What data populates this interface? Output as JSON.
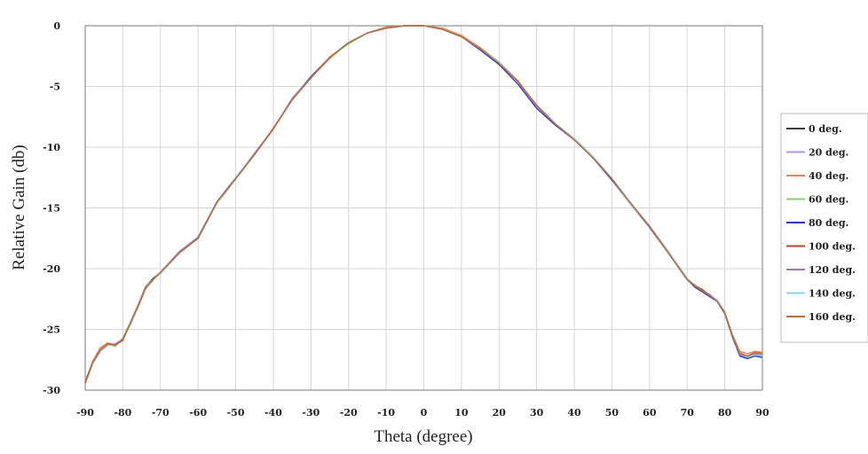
{
  "chart_data": {
    "type": "line",
    "title": "",
    "xlabel": "Theta (degree)",
    "ylabel": "Relative Gain (db)",
    "xlim": [
      -90,
      90
    ],
    "ylim": [
      -30,
      0
    ],
    "x_ticks": [
      "-90",
      "-80",
      "-70",
      "-60",
      "-50",
      "-40",
      "-30",
      "-20",
      "-10",
      "0",
      "10",
      "20",
      "30",
      "40",
      "50",
      "60",
      "70",
      "80",
      "90"
    ],
    "y_ticks": [
      "0",
      "-5",
      "-10",
      "-15",
      "-20",
      "-25",
      "-30"
    ],
    "grid": true,
    "legend_position": "right",
    "x": [
      -90,
      -88,
      -86,
      -84,
      -82,
      -80,
      -78,
      -76,
      -74,
      -72,
      -70,
      -65,
      -60,
      -55,
      -50,
      -45,
      -40,
      -35,
      -30,
      -25,
      -20,
      -15,
      -10,
      -5,
      0,
      5,
      10,
      15,
      20,
      25,
      30,
      35,
      40,
      45,
      50,
      55,
      60,
      65,
      70,
      72,
      74,
      76,
      78,
      80,
      82,
      84,
      86,
      88,
      90
    ],
    "series": [
      {
        "name": "0 deg.",
        "color": "#3c3c3c",
        "values": [
          -29.3,
          -27.8,
          -26.8,
          -26.3,
          -26.3,
          -25.8,
          -24.5,
          -23.0,
          -21.6,
          -20.9,
          -20.3,
          -18.7,
          -17.5,
          -14.5,
          -12.6,
          -10.6,
          -8.5,
          -6.1,
          -4.3,
          -2.6,
          -1.4,
          -0.6,
          -0.2,
          0.0,
          0.0,
          -0.3,
          -0.9,
          -1.9,
          -3.0,
          -4.6,
          -6.6,
          -8.1,
          -9.3,
          -10.8,
          -12.6,
          -14.7,
          -16.5,
          -18.6,
          -20.8,
          -21.4,
          -21.8,
          -22.2,
          -22.6,
          -23.6,
          -25.5,
          -27.0,
          -27.3,
          -27.1,
          -27.2
        ]
      },
      {
        "name": "20 deg.",
        "color": "#b69cd9",
        "values": [
          -29.3,
          -27.7,
          -26.6,
          -26.2,
          -26.2,
          -25.8,
          -24.6,
          -23.1,
          -21.5,
          -20.8,
          -20.3,
          -18.6,
          -17.4,
          -14.6,
          -12.5,
          -10.5,
          -8.5,
          -6.0,
          -4.2,
          -2.6,
          -1.4,
          -0.6,
          -0.2,
          0.0,
          0.0,
          -0.3,
          -0.9,
          -1.9,
          -3.1,
          -4.6,
          -6.5,
          -8.1,
          -9.4,
          -10.9,
          -12.7,
          -14.6,
          -16.6,
          -18.7,
          -20.9,
          -21.3,
          -21.9,
          -22.1,
          -22.7,
          -23.7,
          -25.6,
          -26.9,
          -27.2,
          -26.9,
          -27.3
        ]
      },
      {
        "name": "40 deg.",
        "color": "#f0814c",
        "values": [
          -29.4,
          -27.6,
          -26.5,
          -26.1,
          -26.3,
          -25.9,
          -24.5,
          -23.2,
          -21.7,
          -20.9,
          -20.4,
          -18.7,
          -17.5,
          -14.5,
          -12.6,
          -10.6,
          -8.4,
          -6.1,
          -4.3,
          -2.7,
          -1.4,
          -0.6,
          -0.1,
          0.0,
          0.0,
          -0.2,
          -0.8,
          -1.8,
          -3.0,
          -4.5,
          -6.6,
          -8.2,
          -9.3,
          -10.8,
          -12.6,
          -14.7,
          -16.5,
          -18.6,
          -20.8,
          -21.5,
          -21.7,
          -22.3,
          -22.6,
          -23.6,
          -25.4,
          -26.8,
          -27.0,
          -26.8,
          -26.9
        ]
      },
      {
        "name": "60 deg.",
        "color": "#8fcc6c",
        "values": [
          -29.2,
          -27.7,
          -26.7,
          -26.2,
          -26.4,
          -25.7,
          -24.4,
          -23.0,
          -21.6,
          -21.0,
          -20.3,
          -18.6,
          -17.5,
          -14.6,
          -12.6,
          -10.6,
          -8.5,
          -6.0,
          -4.3,
          -2.6,
          -1.5,
          -0.6,
          -0.2,
          0.0,
          0.0,
          -0.3,
          -0.9,
          -1.9,
          -3.0,
          -4.6,
          -6.6,
          -8.1,
          -9.4,
          -10.9,
          -12.6,
          -14.6,
          -16.5,
          -18.7,
          -20.9,
          -21.4,
          -21.8,
          -22.2,
          -22.7,
          -23.6,
          -25.5,
          -27.1,
          -27.4,
          -27.0,
          -27.1
        ]
      },
      {
        "name": "80 deg.",
        "color": "#2d3dba",
        "values": [
          -29.3,
          -27.8,
          -26.8,
          -26.3,
          -26.3,
          -25.8,
          -24.6,
          -23.1,
          -21.6,
          -20.8,
          -20.4,
          -18.7,
          -17.4,
          -14.5,
          -12.5,
          -10.6,
          -8.5,
          -6.1,
          -4.2,
          -2.6,
          -1.4,
          -0.6,
          -0.2,
          0.0,
          0.0,
          -0.3,
          -0.9,
          -2.0,
          -3.2,
          -4.8,
          -6.8,
          -8.2,
          -9.4,
          -10.9,
          -12.7,
          -14.7,
          -16.6,
          -18.7,
          -20.9,
          -21.5,
          -21.9,
          -22.3,
          -22.7,
          -23.7,
          -25.6,
          -27.2,
          -27.4,
          -27.2,
          -27.3
        ]
      },
      {
        "name": "100 deg.",
        "color": "#b8432c",
        "values": [
          -29.4,
          -27.8,
          -26.7,
          -26.2,
          -26.3,
          -25.9,
          -24.5,
          -23.1,
          -21.6,
          -20.9,
          -20.3,
          -18.7,
          -17.5,
          -14.6,
          -12.6,
          -10.6,
          -8.5,
          -6.1,
          -4.3,
          -2.6,
          -1.4,
          -0.6,
          -0.2,
          0.0,
          0.0,
          -0.3,
          -0.9,
          -1.9,
          -3.0,
          -4.6,
          -6.6,
          -8.1,
          -9.3,
          -10.8,
          -12.6,
          -14.7,
          -16.5,
          -18.6,
          -20.8,
          -21.4,
          -21.7,
          -22.2,
          -22.6,
          -23.6,
          -25.5,
          -27.0,
          -27.3,
          -27.1,
          -27.2
        ]
      },
      {
        "name": "120 deg.",
        "color": "#a173c4",
        "values": [
          -29.3,
          -27.7,
          -26.7,
          -26.3,
          -26.2,
          -25.8,
          -24.5,
          -23.0,
          -21.5,
          -20.9,
          -20.3,
          -18.6,
          -17.4,
          -14.5,
          -12.6,
          -10.5,
          -8.5,
          -6.0,
          -4.3,
          -2.6,
          -1.4,
          -0.6,
          -0.2,
          0.0,
          0.0,
          -0.3,
          -0.9,
          -1.9,
          -3.1,
          -4.6,
          -6.6,
          -8.1,
          -9.4,
          -10.9,
          -12.6,
          -14.6,
          -16.6,
          -18.7,
          -20.9,
          -21.4,
          -21.8,
          -22.2,
          -22.7,
          -23.7,
          -25.5,
          -27.1,
          -27.3,
          -27.0,
          -27.2
        ]
      },
      {
        "name": "140 deg.",
        "color": "#8ed6e8",
        "values": [
          -29.2,
          -27.8,
          -26.8,
          -26.3,
          -26.3,
          -25.8,
          -24.6,
          -23.0,
          -21.6,
          -20.9,
          -20.4,
          -18.7,
          -17.5,
          -14.6,
          -12.5,
          -10.6,
          -8.5,
          -6.1,
          -4.3,
          -2.6,
          -1.4,
          -0.6,
          -0.2,
          0.0,
          0.0,
          -0.3,
          -0.9,
          -1.9,
          -3.0,
          -4.6,
          -6.6,
          -8.1,
          -9.3,
          -10.8,
          -12.6,
          -14.7,
          -16.5,
          -18.6,
          -20.8,
          -21.4,
          -21.8,
          -22.2,
          -22.6,
          -23.6,
          -25.5,
          -27.0,
          -27.3,
          -27.1,
          -27.2
        ]
      },
      {
        "name": "160 deg.",
        "color": "#b56e3e",
        "values": [
          -29.3,
          -27.7,
          -26.7,
          -26.2,
          -26.3,
          -25.8,
          -24.5,
          -23.1,
          -21.6,
          -20.9,
          -20.3,
          -18.7,
          -17.5,
          -14.5,
          -12.6,
          -10.6,
          -8.5,
          -6.1,
          -4.3,
          -2.6,
          -1.4,
          -0.6,
          -0.2,
          0.0,
          0.0,
          -0.3,
          -0.9,
          -1.9,
          -3.1,
          -4.6,
          -6.6,
          -8.1,
          -9.4,
          -10.9,
          -12.6,
          -14.6,
          -16.5,
          -18.7,
          -20.9,
          -21.4,
          -21.8,
          -22.2,
          -22.7,
          -23.6,
          -25.5,
          -27.0,
          -27.2,
          -26.9,
          -27.0
        ]
      }
    ]
  }
}
